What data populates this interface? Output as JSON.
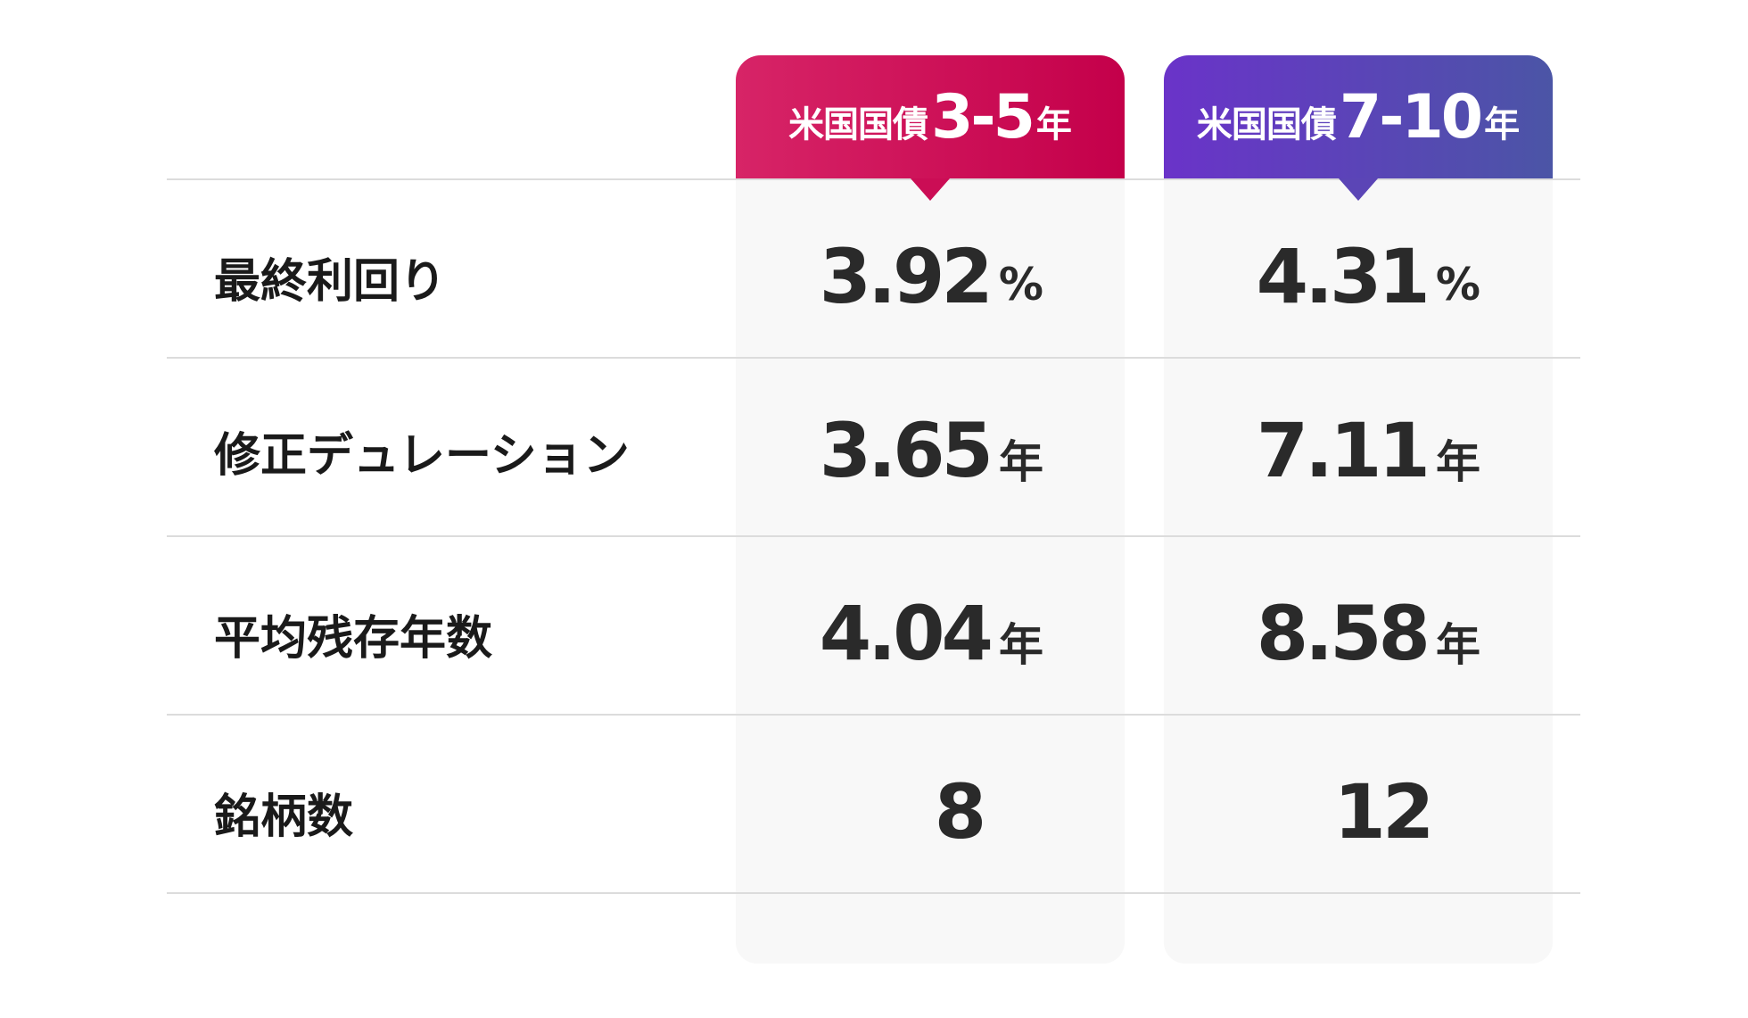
{
  "headers": [
    {
      "prefix": "米国国債",
      "range": "3-5",
      "suffix": "年",
      "gradient_start": "#d72467",
      "gradient_end": "#c4004a"
    },
    {
      "prefix": "米国国債",
      "range": "7-10",
      "suffix": "年",
      "gradient_start": "#6a33c9",
      "gradient_end": "#4b55a6"
    }
  ],
  "rows": [
    {
      "label": "最終利回り",
      "values": [
        {
          "num": "3.92",
          "unit": "%"
        },
        {
          "num": "4.31",
          "unit": "%"
        }
      ]
    },
    {
      "label": "修正デュレーション",
      "values": [
        {
          "num": "3.65",
          "unit": "年"
        },
        {
          "num": "7.11",
          "unit": "年"
        }
      ]
    },
    {
      "label": "平均残存年数",
      "values": [
        {
          "num": "4.04",
          "unit": "年"
        },
        {
          "num": "8.58",
          "unit": "年"
        }
      ]
    },
    {
      "label": "銘柄数",
      "values": [
        {
          "num": "8",
          "unit": ""
        },
        {
          "num": "12",
          "unit": ""
        }
      ]
    }
  ]
}
